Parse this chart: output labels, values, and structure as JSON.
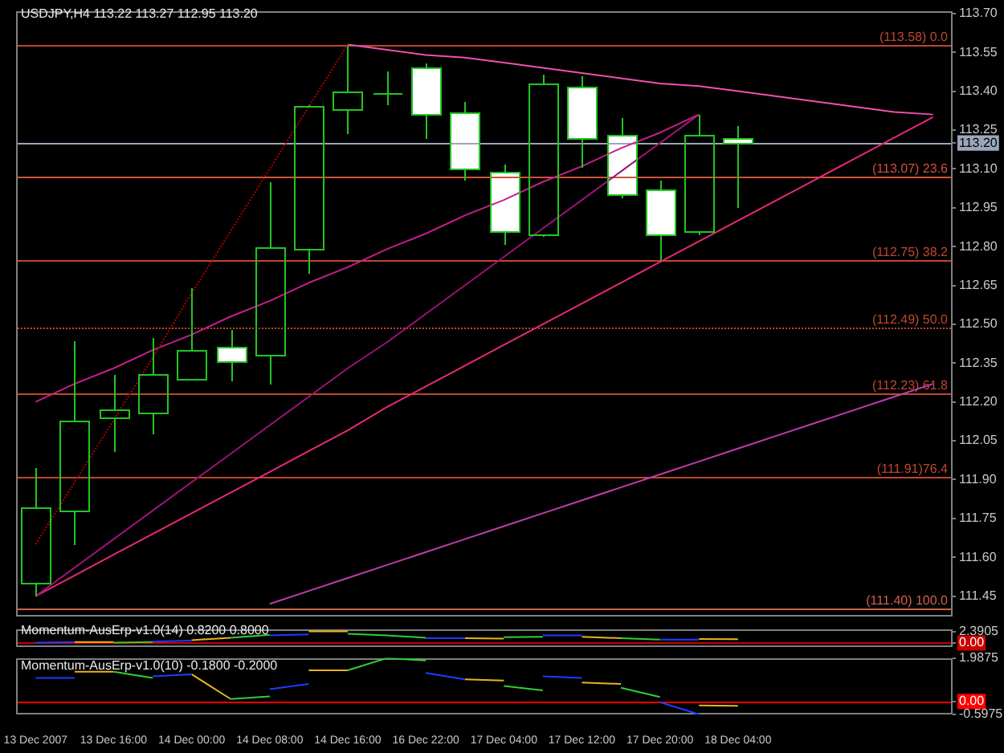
{
  "chart_data": [
    {
      "type": "candlestick",
      "title": "USDJPY,H4 113.22 113.27 112.95 113.20",
      "categories": [
        null,
        null,
        null,
        null,
        null,
        null,
        null,
        null,
        null,
        null,
        null,
        null,
        null,
        null,
        null,
        null,
        null,
        null,
        null,
        null,
        null,
        null,
        null,
        null
      ],
      "ohlc": [
        [
          111.5,
          111.95,
          111.45,
          111.79
        ],
        [
          111.78,
          112.44,
          111.65,
          112.13
        ],
        [
          112.14,
          112.31,
          112.01,
          112.17
        ],
        [
          112.16,
          112.45,
          112.08,
          112.31
        ],
        [
          112.29,
          112.64,
          112.29,
          112.4
        ],
        [
          112.41,
          112.48,
          112.28,
          112.36
        ],
        [
          112.38,
          113.05,
          112.27,
          112.8
        ],
        [
          112.79,
          113.35,
          112.7,
          113.34
        ],
        [
          113.33,
          113.58,
          113.24,
          113.4
        ],
        [
          113.39,
          113.48,
          113.35,
          113.39
        ],
        [
          113.49,
          113.51,
          113.22,
          113.31
        ],
        [
          113.32,
          113.36,
          113.06,
          113.1
        ],
        [
          113.09,
          113.12,
          112.81,
          112.86
        ],
        [
          112.85,
          113.47,
          112.84,
          113.43
        ],
        [
          113.42,
          113.46,
          113.11,
          113.22
        ],
        [
          113.23,
          113.3,
          112.99,
          113.0
        ],
        [
          113.02,
          113.06,
          112.75,
          112.85
        ],
        [
          112.86,
          113.31,
          112.85,
          113.23
        ],
        [
          113.22,
          113.27,
          112.95,
          113.2
        ],
        null,
        null,
        null,
        null,
        null
      ],
      "color": "#22c522",
      "colors": [
        "#22c522",
        "#22c522",
        "#22c522",
        "#22c522",
        "#22c522",
        "#ffffff",
        "#22c522",
        "#22c522",
        "#22c522",
        "#22c522",
        "#ffffff",
        "#ffffff",
        "#ffffff",
        "#22c522",
        "#ffffff",
        "#ffffff",
        "#ffffff",
        "#22c522",
        "#ffffff",
        null,
        null,
        null,
        null,
        null
      ],
      "ylim": [
        111.37,
        113.71
      ],
      "yticks": [
        111.45,
        {
          "value": 111.6,
          "label": "111.60"
        },
        111.75,
        {
          "value": 111.9,
          "label": "111.90"
        },
        112.05,
        {
          "value": 112.2,
          "label": "112.20"
        },
        112.35,
        {
          "value": 112.5,
          "label": "112.50"
        },
        112.65,
        {
          "value": 112.8,
          "label": "112.80"
        },
        112.95,
        {
          "value": 113.1,
          "label": "113.10"
        },
        113.25,
        {
          "value": 113.4,
          "label": "113.40"
        },
        113.55,
        {
          "value": 113.7,
          "label": "113.70"
        },
        {
          "value": 113.2,
          "label": "113.20"
        }
      ],
      "tick_labels": "y",
      "series": [
        {
          "type": "line",
          "color": "#b00000",
          "line_style": "dotted",
          "values": [
            111.65,
            111.89,
            112.13,
            112.37,
            112.62,
            112.86,
            113.1,
            113.34,
            113.58,
            null,
            null,
            null,
            null,
            null,
            null,
            null,
            null,
            null,
            null,
            null,
            null,
            null,
            null,
            null
          ]
        },
        {
          "type": "line",
          "color": "#f050b0",
          "values": [
            null,
            null,
            null,
            null,
            null,
            null,
            null,
            null,
            113.58,
            113.56,
            113.54,
            113.53,
            113.51,
            113.49,
            113.47,
            113.45,
            113.43,
            113.42,
            113.4,
            113.38,
            113.36,
            113.34,
            113.32,
            113.31
          ]
        },
        {
          "type": "line",
          "color": "#c81e8c",
          "values": [
            112.2,
            112.27,
            112.33,
            112.4,
            112.46,
            112.53,
            112.59,
            112.66,
            112.72,
            112.79,
            112.85,
            112.92,
            112.98,
            113.05,
            113.11,
            113.18,
            113.24,
            113.31,
            null,
            null,
            null,
            null,
            null,
            null
          ]
        },
        {
          "type": "line",
          "color": "#9a1478",
          "values": [
            111.45,
            111.56,
            111.67,
            111.78,
            111.89,
            112.0,
            112.11,
            112.22,
            112.33,
            112.43,
            112.54,
            112.65,
            112.76,
            112.87,
            112.98,
            113.09,
            113.2,
            113.31,
            null,
            null,
            null,
            null,
            null,
            null
          ]
        },
        {
          "type": "line",
          "color": "#e8287c",
          "values": [
            111.45,
            111.53,
            111.61,
            111.69,
            111.77,
            111.85,
            111.93,
            112.01,
            112.09,
            112.18,
            112.26,
            112.34,
            112.42,
            112.5,
            112.58,
            112.66,
            112.74,
            112.82,
            112.9,
            112.98,
            113.06,
            113.14,
            113.22,
            113.3
          ]
        },
        {
          "type": "line",
          "color": "#c03cb0",
          "values": [
            null,
            null,
            null,
            null,
            null,
            null,
            111.42,
            111.47,
            111.52,
            111.57,
            111.62,
            111.67,
            111.72,
            111.77,
            111.82,
            111.87,
            111.92,
            111.97,
            112.02,
            112.07,
            112.12,
            112.17,
            112.22,
            112.27
          ]
        }
      ],
      "ref_lines": [
        {
          "axis": "y",
          "value": 113.58,
          "label": "(113.58) 0.0",
          "color": "#c0462e"
        },
        {
          "axis": "y",
          "value": 113.07,
          "label": "(113.07) 23.6",
          "color": "#d2503a"
        },
        {
          "axis": "y",
          "value": 112.75,
          "label": "(112.75) 38.2",
          "color": "#c0462e"
        },
        {
          "axis": "y",
          "value": 112.49,
          "label": "(112.49) 50.0",
          "color": "#c0462e",
          "line_style": "dotted"
        },
        {
          "axis": "y",
          "value": 112.23,
          "label": "(112.23) 61.8",
          "color": "#c0462e"
        },
        {
          "axis": "y",
          "value": 111.91,
          "label": "(111.91)76.4",
          "color": "#c0462e"
        },
        {
          "axis": "y",
          "value": 111.4,
          "label": "(111.40) 100.0",
          "color": "#d0604a"
        },
        {
          "axis": "y",
          "value": 113.2,
          "color": "#9aa6bc"
        }
      ]
    },
    {
      "type": "line",
      "title": "Momentum-AusErp-v1.0(14) 0.8200 0.8000",
      "categories": [
        null,
        null,
        null,
        null,
        null,
        null,
        null,
        null,
        null,
        null,
        null,
        null,
        null,
        null,
        null,
        null,
        null,
        null,
        null,
        null,
        null,
        null,
        null,
        null
      ],
      "ylim": [
        -0.9,
        2.9
      ],
      "yticks": [
        2.3905,
        {
          "value": 0,
          "label": "0.00"
        }
      ],
      "tick_labels": "y",
      "series": [
        {
          "color": "#32cd32",
          "values": [
            null,
            null,
            0.1,
            0.2,
            null,
            1.1,
            1.7,
            null,
            1.9,
            1.6,
            1.1,
            null,
            1.2,
            1.3,
            null,
            1.0,
            0.7,
            null,
            null,
            null,
            null,
            null,
            null,
            null
          ]
        },
        {
          "color": "#1e3cff",
          "values": [
            0.1,
            0.2,
            null,
            0.3,
            0.5,
            null,
            1.6,
            1.8,
            null,
            null,
            1.0,
            1.0,
            null,
            1.6,
            1.6,
            null,
            0.7,
            0.7,
            null,
            null,
            null,
            null,
            null,
            null
          ]
        },
        {
          "color": "#e6b422",
          "values": [
            null,
            0.2,
            0.2,
            null,
            0.6,
            1.1,
            null,
            2.4,
            2.4,
            null,
            null,
            1.0,
            0.9,
            null,
            1.3,
            1.0,
            null,
            0.82,
            0.8,
            null,
            null,
            null,
            null,
            null
          ]
        }
      ],
      "ref_lines": [
        {
          "axis": "y",
          "value": 0,
          "color": "#c80000"
        }
      ]
    },
    {
      "type": "line",
      "title": "Momentum-AusErp-v1.0(10) -0.1800 -0.2000",
      "categories": [
        "13 Dec 2007",
        null,
        "13 Dec 16:00",
        null,
        "14 Dec 00:00",
        null,
        "14 Dec 08:00",
        null,
        "14 Dec 16:00",
        null,
        "16 Dec 22:00",
        null,
        "17 Dec 04:00",
        null,
        "17 Dec 12:00",
        null,
        "17 Dec 20:00",
        null,
        "18 Dec 04:00",
        null,
        null,
        null,
        null,
        null
      ],
      "ylim": [
        -0.5975,
        1.9875
      ],
      "yticks": [
        1.9875,
        {
          "value": 0,
          "label": "0.00"
        },
        -0.5975
      ],
      "series": [
        {
          "color": "#32cd32",
          "values": [
            null,
            null,
            1.36,
            1.07,
            null,
            0.11,
            0.23,
            null,
            1.42,
            1.98,
            1.87,
            null,
            0.71,
            0.5,
            null,
            0.62,
            0.2,
            null,
            null,
            null,
            null,
            null,
            null,
            null
          ]
        },
        {
          "color": "#1e3cff",
          "values": [
            1.07,
            1.07,
            null,
            1.15,
            1.24,
            null,
            0.56,
            0.8,
            null,
            null,
            1.3,
            1.01,
            null,
            1.15,
            1.07,
            null,
            -0.04,
            -0.59,
            null,
            null,
            null,
            null,
            null,
            null
          ]
        },
        {
          "color": "#e6b422",
          "values": [
            null,
            1.36,
            1.36,
            null,
            1.24,
            0.11,
            null,
            1.42,
            1.42,
            null,
            null,
            1.01,
            0.95,
            null,
            0.86,
            0.8,
            null,
            -0.18,
            -0.2,
            null,
            null,
            null,
            null,
            null
          ]
        }
      ],
      "ref_lines": [
        {
          "axis": "y",
          "value": 0,
          "color": "#ff0000"
        }
      ]
    }
  ]
}
